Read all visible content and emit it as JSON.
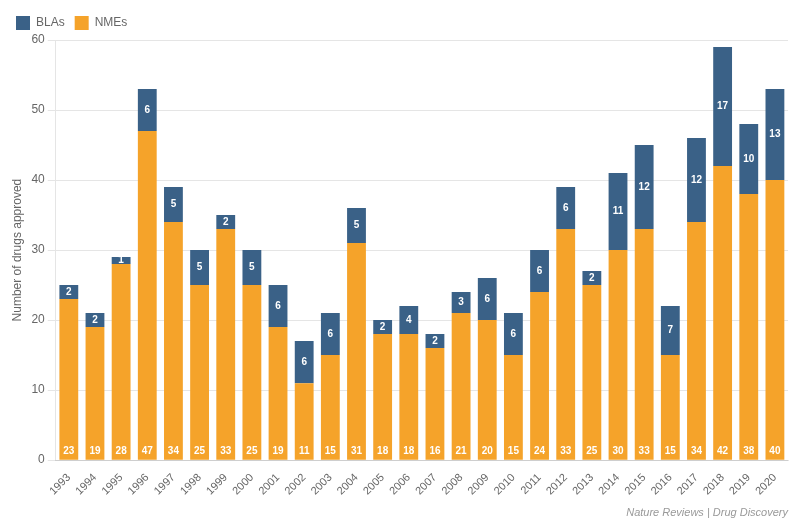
{
  "chart_data": {
    "type": "bar",
    "stacked": true,
    "categories": [
      "1993",
      "1994",
      "1995",
      "1996",
      "1997",
      "1998",
      "1999",
      "2000",
      "2001",
      "2002",
      "2003",
      "2004",
      "2005",
      "2006",
      "2007",
      "2008",
      "2009",
      "2010",
      "2011",
      "2012",
      "2013",
      "2014",
      "2015",
      "2016",
      "2017",
      "2018",
      "2019",
      "2020"
    ],
    "series": [
      {
        "name": "NMEs",
        "color": "#F5A32A",
        "values": [
          23,
          19,
          28,
          47,
          34,
          25,
          33,
          25,
          19,
          11,
          15,
          31,
          18,
          18,
          16,
          21,
          20,
          15,
          24,
          33,
          25,
          30,
          33,
          15,
          34,
          42,
          38,
          40
        ]
      },
      {
        "name": "BLAs",
        "color": "#3A6187",
        "values": [
          2,
          2,
          1,
          6,
          5,
          5,
          2,
          5,
          6,
          6,
          6,
          5,
          2,
          4,
          2,
          3,
          6,
          6,
          6,
          6,
          2,
          11,
          12,
          7,
          12,
          17,
          10,
          13
        ]
      }
    ],
    "ylabel": "Number of drugs approved",
    "ylim": [
      0,
      60
    ],
    "yticks": [
      0,
      10,
      20,
      30,
      40,
      50,
      60
    ],
    "grid": true,
    "legend": "upper left",
    "data_labels": true,
    "annotations": [
      "Nature Reviews | Drug Discovery"
    ]
  }
}
